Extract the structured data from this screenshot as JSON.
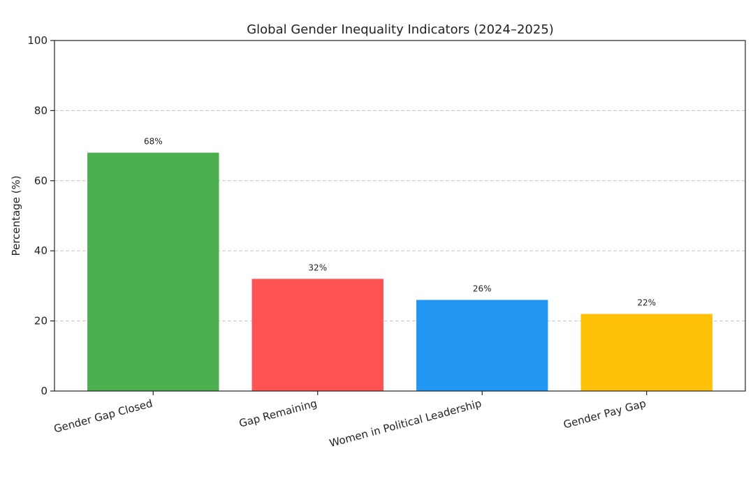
{
  "chart_data": {
    "type": "bar",
    "title": "Global Gender Inequality Indicators (2024–2025)",
    "xlabel": "",
    "ylabel": "Percentage (%)",
    "ylim": [
      0,
      100
    ],
    "yticks": [
      0,
      20,
      40,
      60,
      80,
      100
    ],
    "grid": "y-dashed",
    "categories": [
      "Gender Gap Closed",
      "Gap Remaining",
      "Women in Political Leadership",
      "Gender Pay Gap"
    ],
    "values": [
      68,
      32,
      26,
      22
    ],
    "data_labels": [
      "68%",
      "32%",
      "26%",
      "22%"
    ],
    "colors": [
      "#4caf50",
      "#ff5252",
      "#2196f3",
      "#ffc107"
    ],
    "xtick_rotation_deg": 15
  }
}
